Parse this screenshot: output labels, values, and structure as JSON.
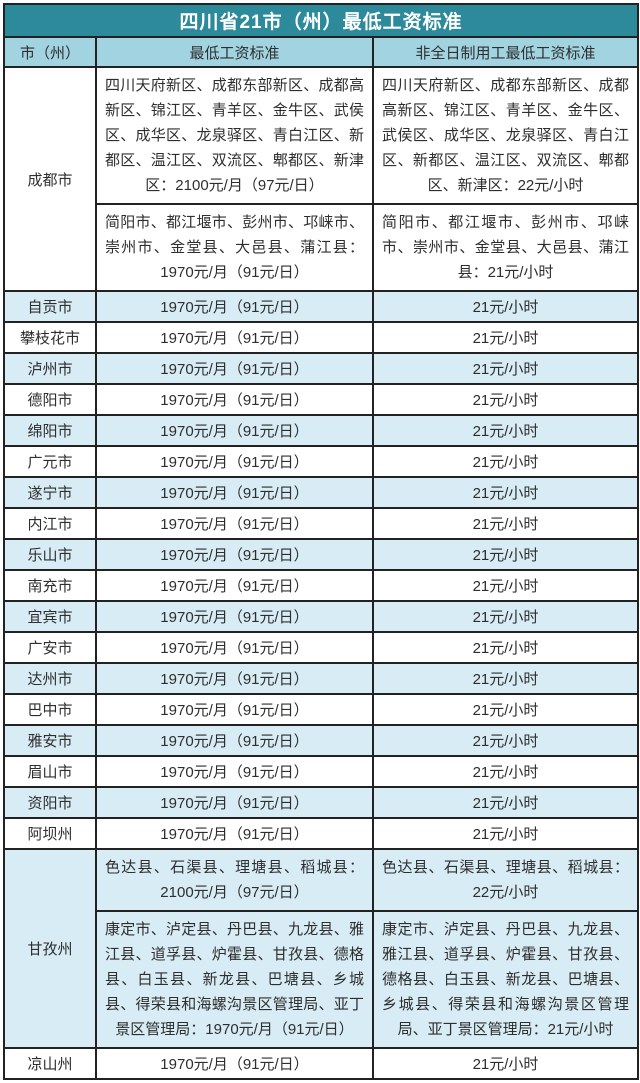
{
  "colors": {
    "title_bg": "#2d8a9b",
    "header_bg": "#a2d3e0",
    "stripe_bg": "#d8ecf5",
    "row_bg": "#ffffff",
    "border": "#222222",
    "title_text": "#ffffff",
    "body_text": "#2e2e2e"
  },
  "chart_data": {
    "type": "table",
    "title": "四川省21市（州）最低工资标准",
    "columns": [
      "市（州）",
      "最低工资标准",
      "非全日制用工最低工资标准"
    ],
    "rows": [
      {
        "city": "成都市",
        "sub": [
          {
            "monthly": "四川天府新区、成都东部新区、成都高新区、锦江区、青羊区、金牛区、武侯区、成华区、龙泉驿区、青白江区、新都区、温江区、双流区、郫都区、新津区：2100元/月（97元/日）",
            "hourly": "四川天府新区、成都东部新区、成都高新区、锦江区、青羊区、金牛区、武侯区、成华区、龙泉驿区、青白江区、新都区、温江区、双流区、郫都区、新津区：22元/小时"
          },
          {
            "monthly": "简阳市、都江堰市、彭州市、邛崃市、崇州市、金堂县、大邑县、蒲江县：1970元/月（91元/日）",
            "hourly": "简阳市、都江堰市、彭州市、邛崃市、崇州市、金堂县、大邑县、蒲江县：21元/小时"
          }
        ]
      },
      {
        "city": "自贡市",
        "monthly": "1970元/月（91元/日）",
        "hourly": "21元/小时"
      },
      {
        "city": "攀枝花市",
        "monthly": "1970元/月（91元/日）",
        "hourly": "21元/小时"
      },
      {
        "city": "泸州市",
        "monthly": "1970元/月（91元/日）",
        "hourly": "21元/小时"
      },
      {
        "city": "德阳市",
        "monthly": "1970元/月（91元/日）",
        "hourly": "21元/小时"
      },
      {
        "city": "绵阳市",
        "monthly": "1970元/月（91元/日）",
        "hourly": "21元/小时"
      },
      {
        "city": "广元市",
        "monthly": "1970元/月（91元/日）",
        "hourly": "21元/小时"
      },
      {
        "city": "遂宁市",
        "monthly": "1970元/月（91元/日）",
        "hourly": "21元/小时"
      },
      {
        "city": "内江市",
        "monthly": "1970元/月（91元/日）",
        "hourly": "21元/小时"
      },
      {
        "city": "乐山市",
        "monthly": "1970元/月（91元/日）",
        "hourly": "21元/小时"
      },
      {
        "city": "南充市",
        "monthly": "1970元/月（91元/日）",
        "hourly": "21元/小时"
      },
      {
        "city": "宜宾市",
        "monthly": "1970元/月（91元/日）",
        "hourly": "21元/小时"
      },
      {
        "city": "广安市",
        "monthly": "1970元/月（91元/日）",
        "hourly": "21元/小时"
      },
      {
        "city": "达州市",
        "monthly": "1970元/月（91元/日）",
        "hourly": "21元/小时"
      },
      {
        "city": "巴中市",
        "monthly": "1970元/月（91元/日）",
        "hourly": "21元/小时"
      },
      {
        "city": "雅安市",
        "monthly": "1970元/月（91元/日）",
        "hourly": "21元/小时"
      },
      {
        "city": "眉山市",
        "monthly": "1970元/月（91元/日）",
        "hourly": "21元/小时"
      },
      {
        "city": "资阳市",
        "monthly": "1970元/月（91元/日）",
        "hourly": "21元/小时"
      },
      {
        "city": "阿坝州",
        "monthly": "1970元/月（91元/日）",
        "hourly": "21元/小时"
      },
      {
        "city": "甘孜州",
        "sub": [
          {
            "monthly": "色达县、石渠县、理塘县、稻城县：2100元/月（97元/日）",
            "hourly": "色达县、石渠县、理塘县、稻城县：22元/小时"
          },
          {
            "monthly": "康定市、泸定县、丹巴县、九龙县、雅江县、道孚县、炉霍县、甘孜县、德格县、白玉县、新龙县、巴塘县、乡城县、得荣县和海螺沟景区管理局、亚丁景区管理局：1970元/月（91元/日）",
            "hourly": "康定市、泸定县、丹巴县、九龙县、雅江县、道孚县、炉霍县、甘孜县、德格县、白玉县、新龙县、巴塘县、乡城县、得荣县和海螺沟景区管理局、亚丁景区管理局：21元/小时"
          }
        ]
      },
      {
        "city": "凉山州",
        "monthly": "1970元/月（91元/日）",
        "hourly": "21元/小时"
      }
    ]
  }
}
